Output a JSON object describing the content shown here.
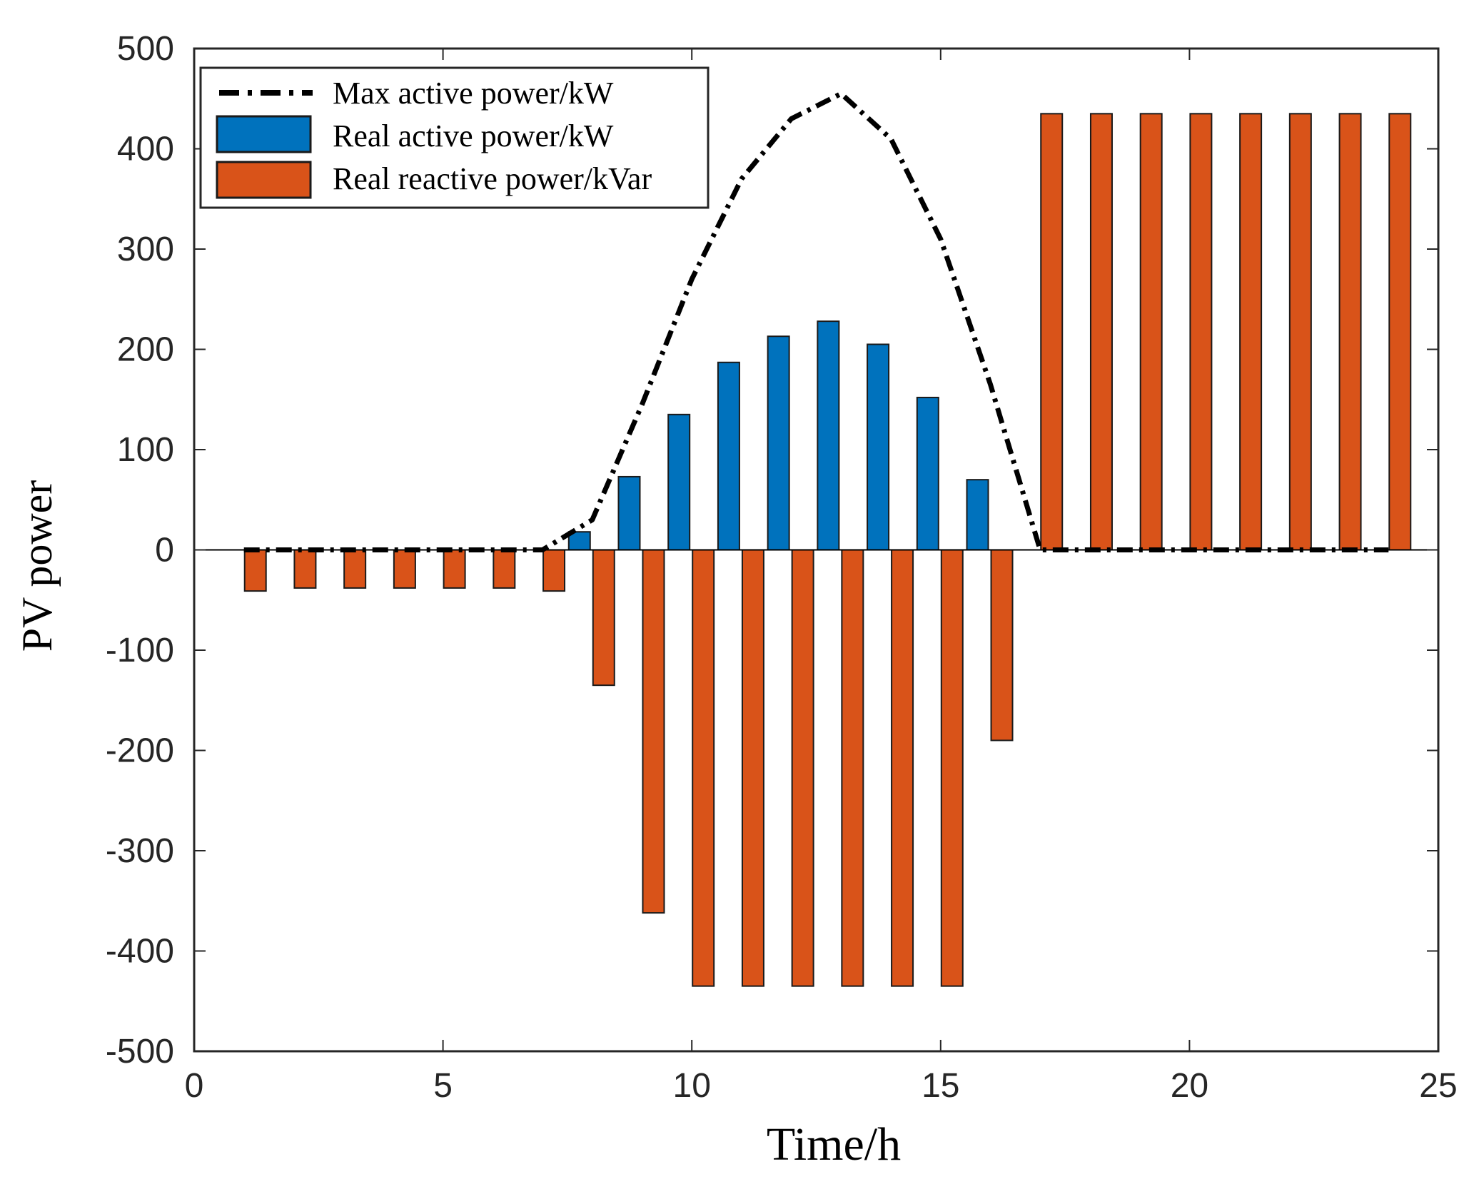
{
  "chart_data": {
    "type": "bar",
    "xlabel": "Time/h",
    "ylabel": "PV  power",
    "xlim": [
      0,
      25
    ],
    "ylim": [
      -500,
      500
    ],
    "xticks": [
      0,
      5,
      10,
      15,
      20,
      25
    ],
    "yticks": [
      -500,
      -400,
      -300,
      -200,
      -100,
      0,
      100,
      200,
      300,
      400,
      500
    ],
    "grid": false,
    "legend_position": "top-left",
    "colors": {
      "active": "#0072BD",
      "reactive": "#D95319",
      "max_line": "#000000"
    },
    "series": [
      {
        "name": "Max active power/kW",
        "kind": "line",
        "style": "dash-dot",
        "x": [
          1,
          2,
          3,
          4,
          5,
          6,
          7,
          8,
          9,
          10,
          11,
          12,
          13,
          14,
          15,
          16,
          17,
          18,
          19,
          20,
          21,
          22,
          23,
          24
        ],
        "values": [
          0,
          0,
          0,
          0,
          0,
          0,
          0,
          30,
          145,
          270,
          370,
          430,
          455,
          410,
          310,
          165,
          0,
          0,
          0,
          0,
          0,
          0,
          0,
          0
        ]
      },
      {
        "name": "Real active power/kW",
        "kind": "bar",
        "x": [
          1,
          2,
          3,
          4,
          5,
          6,
          7,
          8,
          9,
          10,
          11,
          12,
          13,
          14,
          15,
          16,
          17,
          18,
          19,
          20,
          21,
          22,
          23,
          24
        ],
        "values": [
          0,
          0,
          0,
          0,
          0,
          0,
          0,
          18,
          73,
          135,
          187,
          213,
          228,
          205,
          152,
          70,
          0,
          0,
          0,
          0,
          0,
          0,
          0,
          0
        ]
      },
      {
        "name": "Real reactive power/kVar",
        "kind": "bar",
        "x": [
          1,
          2,
          3,
          4,
          5,
          6,
          7,
          8,
          9,
          10,
          11,
          12,
          13,
          14,
          15,
          16,
          17,
          18,
          19,
          20,
          21,
          22,
          23,
          24
        ],
        "values": [
          -41,
          -38,
          -38,
          -38,
          -38,
          -38,
          -41,
          -135,
          -362,
          -435,
          -435,
          -435,
          -435,
          -435,
          -435,
          -190,
          435,
          435,
          435,
          435,
          435,
          435,
          435,
          435
        ]
      }
    ]
  }
}
